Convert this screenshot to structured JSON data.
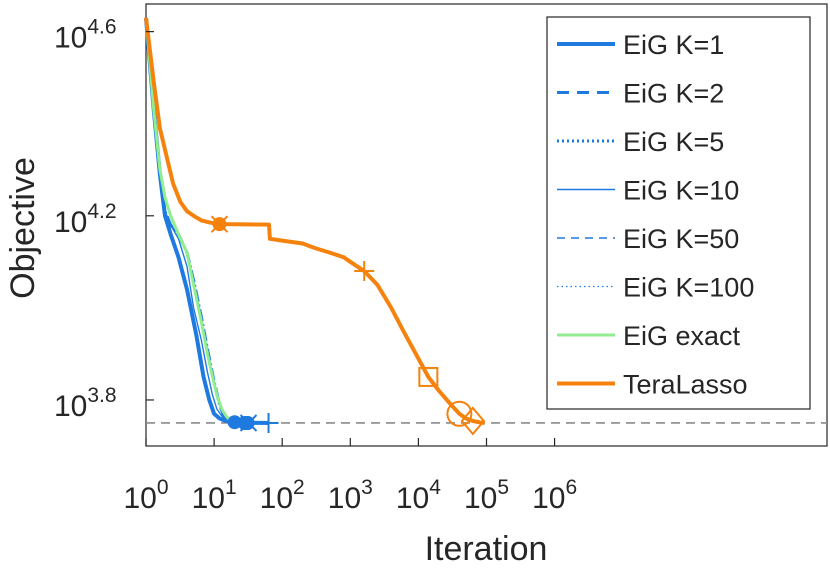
{
  "chart_data": {
    "type": "line",
    "title": "",
    "xlabel": "Iteration",
    "ylabel": "Objective",
    "xscale": "log",
    "yscale": "log",
    "xlim": [
      1,
      10000000000
    ],
    "ylim": [
      5011.87,
      45708.8
    ],
    "xticks": [
      {
        "value": 1,
        "base": "10",
        "exp": "0"
      },
      {
        "value": 10,
        "base": "10",
        "exp": "1"
      },
      {
        "value": 100,
        "base": "10",
        "exp": "2"
      },
      {
        "value": 1000,
        "base": "10",
        "exp": "3"
      },
      {
        "value": 10000,
        "base": "10",
        "exp": "4"
      },
      {
        "value": 100000,
        "base": "10",
        "exp": "5"
      },
      {
        "value": 1000000,
        "base": "10",
        "exp": "6"
      }
    ],
    "yticks": [
      {
        "value": 6309.57,
        "base": "10",
        "exp": "3.8"
      },
      {
        "value": 15848.9,
        "base": "10",
        "exp": "4.2"
      },
      {
        "value": 39810.7,
        "base": "10",
        "exp": "4.6"
      }
    ],
    "reference_line": {
      "y": 5623.4,
      "style": "dashed",
      "color": "#8c8c8c"
    },
    "legend_position": "top-right",
    "grid": false,
    "series": [
      {
        "name": "EiG K=1",
        "color": "#1f7ae0",
        "width": 4,
        "dash": "",
        "x": [
          1,
          1.3,
          1.6,
          1.9,
          2.3,
          3,
          4,
          5.5,
          7,
          8.5,
          10,
          12,
          14,
          17,
          20,
          30,
          50,
          63
        ],
        "y": [
          42658,
          26915,
          19498,
          15849,
          14454,
          12882,
          10965,
          8710,
          7079,
          6310,
          5888,
          5754,
          5700,
          5660,
          5645,
          5630,
          5625,
          5623
        ],
        "markers": [
          {
            "x": 20,
            "y": 5645,
            "shape": "dot"
          },
          {
            "x": 63,
            "y": 5623,
            "shape": "plus"
          }
        ]
      },
      {
        "name": "EiG K=2",
        "color": "#1f7ae0",
        "width": 3,
        "dash": "12 8",
        "x": [
          1,
          1.3,
          1.6,
          1.9,
          2.3,
          3,
          4,
          5,
          6.5,
          8,
          10,
          12,
          14,
          17,
          20,
          25,
          28
        ],
        "y": [
          42658,
          26915,
          19498,
          16218,
          15136,
          14454,
          13183,
          11482,
          9550,
          8128,
          6918,
          6166,
          5808,
          5700,
          5650,
          5630,
          5623
        ],
        "markers": [
          {
            "x": 28,
            "y": 5623,
            "shape": "dot"
          }
        ]
      },
      {
        "name": "EiG K=5",
        "color": "#1f7ae0",
        "width": 3,
        "dash": "2 3",
        "x": [
          1,
          1.3,
          1.6,
          1.9,
          2.3,
          3,
          4,
          5,
          6.5,
          8,
          10,
          12,
          14,
          17,
          20,
          25,
          30
        ],
        "y": [
          42658,
          26915,
          19498,
          16218,
          15136,
          14454,
          13183,
          11482,
          9550,
          8128,
          6918,
          6166,
          5808,
          5700,
          5650,
          5630,
          5623
        ],
        "markers": [
          {
            "x": 30,
            "y": 5623,
            "shape": "dot"
          }
        ]
      },
      {
        "name": "EiG K=10",
        "color": "#1f7ae0",
        "width": 1.4,
        "dash": "",
        "x": [
          1,
          1.3,
          1.6,
          1.9,
          2.3,
          3,
          4,
          5,
          6.5,
          8,
          9.5,
          11,
          13,
          16,
          20,
          26,
          32
        ],
        "y": [
          42658,
          26915,
          19498,
          16218,
          15136,
          14125,
          12303,
          10000,
          8511,
          7244,
          6457,
          6026,
          5821,
          5700,
          5650,
          5630,
          5623
        ],
        "markers": [
          {
            "x": 32,
            "y": 5623,
            "shape": "cross"
          }
        ]
      },
      {
        "name": "EiG K=50",
        "color": "#1f7ae0",
        "width": 1.4,
        "dash": "8 6",
        "x": [
          1,
          1.3,
          1.6,
          1.9,
          2.3,
          3,
          4,
          5,
          6.5,
          8,
          10,
          12,
          14,
          17,
          20,
          25,
          31
        ],
        "y": [
          42658,
          26915,
          19498,
          16218,
          15136,
          14454,
          13183,
          11482,
          9550,
          8128,
          6918,
          6166,
          5808,
          5700,
          5650,
          5630,
          5623
        ],
        "markers": [
          {
            "x": 31,
            "y": 5623,
            "shape": "dot"
          }
        ]
      },
      {
        "name": "EiG K=100",
        "color": "#1f7ae0",
        "width": 1.2,
        "dash": "1.5 3",
        "x": [
          1,
          1.3,
          1.6,
          1.9,
          2.3,
          3,
          4,
          5,
          6.5,
          8,
          10,
          12,
          14,
          17,
          20,
          25,
          31
        ],
        "y": [
          42658,
          26915,
          19498,
          16218,
          15136,
          14454,
          13183,
          11482,
          9550,
          8128,
          6918,
          6166,
          5808,
          5700,
          5650,
          5630,
          5623
        ],
        "markers": [
          {
            "x": 31,
            "y": 5623,
            "shape": "dot"
          }
        ]
      },
      {
        "name": "EiG exact",
        "color": "#90ee90",
        "width": 3,
        "dash": "",
        "x": [
          1,
          1.3,
          1.6,
          1.9,
          2.3,
          3,
          4,
          5,
          6.5,
          8,
          9.5,
          11,
          13,
          15,
          17,
          19,
          21,
          24,
          27
        ],
        "y": [
          42658,
          26915,
          19953,
          17378,
          15849,
          14454,
          13183,
          11220,
          9333,
          7943,
          7079,
          6457,
          6026,
          5821,
          5700,
          5660,
          5640,
          5630,
          5623
        ],
        "markers": []
      },
      {
        "name": "TeraLasso",
        "color": "#f5820d",
        "width": 4,
        "dash": "",
        "x": [
          1,
          1.3,
          1.6,
          2,
          2.5,
          3.2,
          4,
          5,
          6.5,
          8,
          10,
          12,
          20,
          30,
          50,
          64,
          66,
          100,
          200,
          300,
          500,
          800,
          1000,
          1600,
          2500,
          4000,
          6000,
          10000,
          14000,
          20000,
          30000,
          40000,
          50000,
          63000,
          80000,
          94000
        ],
        "y": [
          42658,
          30903,
          24547,
          21380,
          18620,
          16982,
          16218,
          15849,
          15488,
          15370,
          15250,
          15200,
          15190,
          15180,
          15170,
          15160,
          14125,
          14000,
          13800,
          13490,
          13183,
          12882,
          12590,
          12023,
          11220,
          10000,
          8913,
          7762,
          7079,
          6607,
          6166,
          5888,
          5750,
          5680,
          5640,
          5623
        ],
        "markers": [
          {
            "x": 12,
            "y": 15200,
            "shape": "dot"
          },
          {
            "x": 12,
            "y": 15200,
            "shape": "cross"
          },
          {
            "x": 1600,
            "y": 12023,
            "shape": "plus"
          },
          {
            "x": 14000,
            "y": 7079,
            "shape": "square"
          },
          {
            "x": 40000,
            "y": 5888,
            "shape": "circle"
          },
          {
            "x": 63000,
            "y": 5680,
            "shape": "diamond"
          }
        ]
      }
    ]
  }
}
